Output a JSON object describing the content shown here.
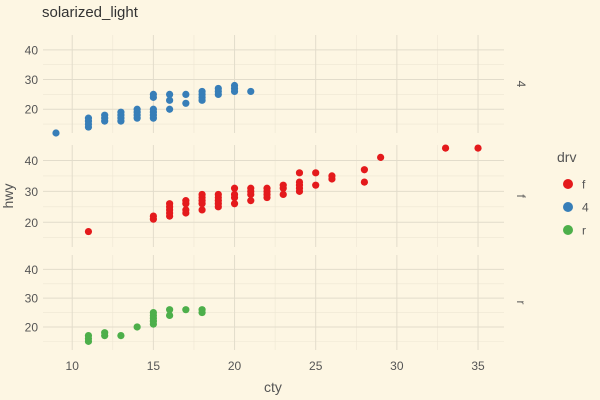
{
  "chart_data": {
    "type": "scatter",
    "title": "solarized_light",
    "xlabel": "cty",
    "ylabel": "hwy",
    "xlim": [
      8.2,
      36.6
    ],
    "ylim": [
      12,
      45
    ],
    "x_ticks": [
      10,
      15,
      20,
      25,
      30,
      35
    ],
    "y_ticks": [
      20,
      30,
      40
    ],
    "grid": true,
    "facet_by": "drv",
    "legend": {
      "title": "drv",
      "position": "right",
      "entries": [
        {
          "label": "f",
          "color": "#e41a1c"
        },
        {
          "label": "4",
          "color": "#377eb8"
        },
        {
          "label": "r",
          "color": "#4daf4a"
        }
      ]
    },
    "panels": [
      {
        "label": "4",
        "color": "#377eb8",
        "points": [
          [
            9,
            12
          ],
          [
            11,
            14
          ],
          [
            11,
            15
          ],
          [
            11,
            16
          ],
          [
            11,
            17
          ],
          [
            12,
            16
          ],
          [
            12,
            17
          ],
          [
            12,
            18
          ],
          [
            13,
            16
          ],
          [
            13,
            17
          ],
          [
            13,
            18
          ],
          [
            13,
            19
          ],
          [
            14,
            17
          ],
          [
            14,
            18
          ],
          [
            14,
            19
          ],
          [
            14,
            20
          ],
          [
            15,
            17
          ],
          [
            15,
            18
          ],
          [
            15,
            19
          ],
          [
            15,
            20
          ],
          [
            15,
            24
          ],
          [
            15,
            25
          ],
          [
            16,
            20
          ],
          [
            16,
            23
          ],
          [
            16,
            25
          ],
          [
            17,
            22
          ],
          [
            17,
            25
          ],
          [
            18,
            23
          ],
          [
            18,
            24
          ],
          [
            18,
            25
          ],
          [
            18,
            26
          ],
          [
            19,
            25
          ],
          [
            19,
            26
          ],
          [
            19,
            27
          ],
          [
            20,
            26
          ],
          [
            20,
            27
          ],
          [
            20,
            28
          ],
          [
            21,
            26
          ]
        ]
      },
      {
        "label": "f",
        "color": "#e41a1c",
        "points": [
          [
            11,
            17
          ],
          [
            15,
            21
          ],
          [
            15,
            22
          ],
          [
            16,
            22
          ],
          [
            16,
            23
          ],
          [
            16,
            24
          ],
          [
            16,
            25
          ],
          [
            16,
            26
          ],
          [
            17,
            23
          ],
          [
            17,
            24
          ],
          [
            17,
            26
          ],
          [
            17,
            27
          ],
          [
            18,
            24
          ],
          [
            18,
            26
          ],
          [
            18,
            27
          ],
          [
            18,
            28
          ],
          [
            18,
            29
          ],
          [
            19,
            25
          ],
          [
            19,
            26
          ],
          [
            19,
            27
          ],
          [
            19,
            28
          ],
          [
            19,
            29
          ],
          [
            20,
            26
          ],
          [
            20,
            28
          ],
          [
            20,
            29
          ],
          [
            20,
            31
          ],
          [
            21,
            27
          ],
          [
            21,
            29
          ],
          [
            21,
            30
          ],
          [
            21,
            31
          ],
          [
            22,
            28
          ],
          [
            22,
            29
          ],
          [
            22,
            30
          ],
          [
            22,
            31
          ],
          [
            23,
            29
          ],
          [
            23,
            31
          ],
          [
            23,
            32
          ],
          [
            24,
            30
          ],
          [
            24,
            31
          ],
          [
            24,
            32
          ],
          [
            24,
            33
          ],
          [
            24,
            36
          ],
          [
            25,
            32
          ],
          [
            25,
            36
          ],
          [
            26,
            34
          ],
          [
            26,
            35
          ],
          [
            28,
            33
          ],
          [
            28,
            37
          ],
          [
            29,
            41
          ],
          [
            33,
            44
          ],
          [
            35,
            44
          ]
        ]
      },
      {
        "label": "r",
        "color": "#4daf4a",
        "points": [
          [
            11,
            15
          ],
          [
            11,
            16
          ],
          [
            11,
            17
          ],
          [
            12,
            17
          ],
          [
            12,
            18
          ],
          [
            13,
            17
          ],
          [
            14,
            20
          ],
          [
            15,
            21
          ],
          [
            15,
            22
          ],
          [
            15,
            23
          ],
          [
            15,
            24
          ],
          [
            15,
            25
          ],
          [
            16,
            24
          ],
          [
            16,
            26
          ],
          [
            17,
            26
          ],
          [
            18,
            25
          ],
          [
            18,
            26
          ]
        ]
      }
    ]
  }
}
